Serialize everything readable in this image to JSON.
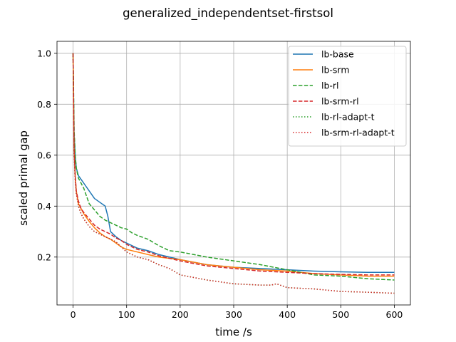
{
  "chart_data": {
    "type": "line",
    "title": "generalized_independentset-firstsol",
    "xlabel": "time /s",
    "ylabel": "scaled primal gap",
    "xlim": [
      -30,
      630
    ],
    "ylim": [
      0.012,
      1.047
    ],
    "xticks": [
      0,
      100,
      200,
      300,
      400,
      500,
      600
    ],
    "yticks": [
      0.2,
      0.4,
      0.6,
      0.8,
      1.0
    ],
    "xtick_labels": [
      "0",
      "100",
      "200",
      "300",
      "400",
      "500",
      "600"
    ],
    "ytick_labels": [
      "0.2",
      "0.4",
      "0.6",
      "0.8",
      "1.0"
    ],
    "grid": true,
    "legend_position": "top-right",
    "series": [
      {
        "name": "lb-base",
        "color": "#1f77b4",
        "style": "solid",
        "x": [
          0,
          1,
          2,
          4,
          6,
          10,
          20,
          30,
          40,
          50,
          60,
          65,
          70,
          80,
          90,
          100,
          120,
          140,
          160,
          180,
          200,
          250,
          300,
          350,
          400,
          450,
          500,
          550,
          600
        ],
        "y": [
          1.0,
          0.82,
          0.68,
          0.6,
          0.55,
          0.52,
          0.49,
          0.46,
          0.43,
          0.415,
          0.4,
          0.36,
          0.3,
          0.28,
          0.265,
          0.255,
          0.235,
          0.225,
          0.21,
          0.2,
          0.19,
          0.17,
          0.16,
          0.155,
          0.15,
          0.145,
          0.142,
          0.14,
          0.14
        ]
      },
      {
        "name": "lb-srm",
        "color": "#ff7f0e",
        "style": "solid",
        "x": [
          0,
          1,
          2,
          4,
          6,
          10,
          20,
          30,
          40,
          50,
          60,
          70,
          80,
          90,
          100,
          120,
          140,
          160,
          180,
          200,
          250,
          300,
          350,
          400,
          450,
          500,
          550,
          600
        ],
        "y": [
          1.0,
          0.8,
          0.62,
          0.52,
          0.46,
          0.41,
          0.37,
          0.34,
          0.315,
          0.295,
          0.28,
          0.27,
          0.255,
          0.24,
          0.23,
          0.22,
          0.21,
          0.2,
          0.195,
          0.19,
          0.17,
          0.16,
          0.15,
          0.145,
          0.135,
          0.13,
          0.125,
          0.125
        ]
      },
      {
        "name": "lb-rl",
        "color": "#2ca02c",
        "style": "dashed",
        "x": [
          0,
          1,
          2,
          4,
          6,
          10,
          15,
          20,
          25,
          30,
          40,
          50,
          60,
          70,
          80,
          90,
          100,
          110,
          120,
          140,
          160,
          180,
          200,
          250,
          300,
          350,
          400,
          450,
          500,
          550,
          600
        ],
        "y": [
          1.0,
          0.85,
          0.7,
          0.6,
          0.55,
          0.51,
          0.49,
          0.47,
          0.44,
          0.41,
          0.385,
          0.36,
          0.345,
          0.335,
          0.325,
          0.315,
          0.31,
          0.295,
          0.285,
          0.27,
          0.245,
          0.225,
          0.22,
          0.2,
          0.185,
          0.17,
          0.15,
          0.13,
          0.125,
          0.115,
          0.11
        ]
      },
      {
        "name": "lb-srm-rl",
        "color": "#d62728",
        "style": "dashed",
        "x": [
          0,
          1,
          2,
          4,
          6,
          10,
          15,
          20,
          30,
          40,
          50,
          60,
          70,
          80,
          90,
          100,
          120,
          140,
          160,
          180,
          200,
          250,
          300,
          350,
          400,
          450,
          500,
          550,
          600
        ],
        "y": [
          1.0,
          0.8,
          0.62,
          0.52,
          0.46,
          0.42,
          0.39,
          0.375,
          0.35,
          0.325,
          0.31,
          0.3,
          0.29,
          0.275,
          0.265,
          0.25,
          0.23,
          0.22,
          0.205,
          0.195,
          0.185,
          0.165,
          0.155,
          0.145,
          0.14,
          0.135,
          0.132,
          0.13,
          0.13
        ]
      },
      {
        "name": "lb-rl-adapt-t",
        "color": "#2ca02c",
        "style": "dotted",
        "x": [
          0,
          1,
          2,
          4,
          6,
          10,
          15,
          20,
          30,
          40,
          50,
          60,
          70,
          80,
          90,
          100,
          120,
          140,
          160,
          180,
          200,
          250,
          300,
          350,
          370,
          380,
          400,
          450,
          500,
          550,
          600
        ],
        "y": [
          1.0,
          0.8,
          0.6,
          0.5,
          0.45,
          0.4,
          0.37,
          0.35,
          0.32,
          0.3,
          0.29,
          0.28,
          0.27,
          0.26,
          0.24,
          0.22,
          0.2,
          0.19,
          0.17,
          0.155,
          0.13,
          0.11,
          0.095,
          0.09,
          0.09,
          0.095,
          0.08,
          0.075,
          0.065,
          0.062,
          0.058
        ]
      },
      {
        "name": "lb-srm-rl-adapt-t",
        "color": "#d62728",
        "style": "dotted",
        "x": [
          0,
          1,
          2,
          4,
          6,
          10,
          15,
          20,
          30,
          40,
          50,
          60,
          70,
          80,
          90,
          100,
          120,
          140,
          160,
          180,
          200,
          250,
          300,
          350,
          370,
          380,
          400,
          450,
          500,
          550,
          600
        ],
        "y": [
          1.0,
          0.8,
          0.6,
          0.5,
          0.45,
          0.4,
          0.37,
          0.35,
          0.32,
          0.3,
          0.29,
          0.28,
          0.27,
          0.26,
          0.24,
          0.22,
          0.2,
          0.19,
          0.17,
          0.155,
          0.13,
          0.11,
          0.095,
          0.09,
          0.09,
          0.095,
          0.08,
          0.075,
          0.065,
          0.062,
          0.058
        ]
      }
    ]
  }
}
